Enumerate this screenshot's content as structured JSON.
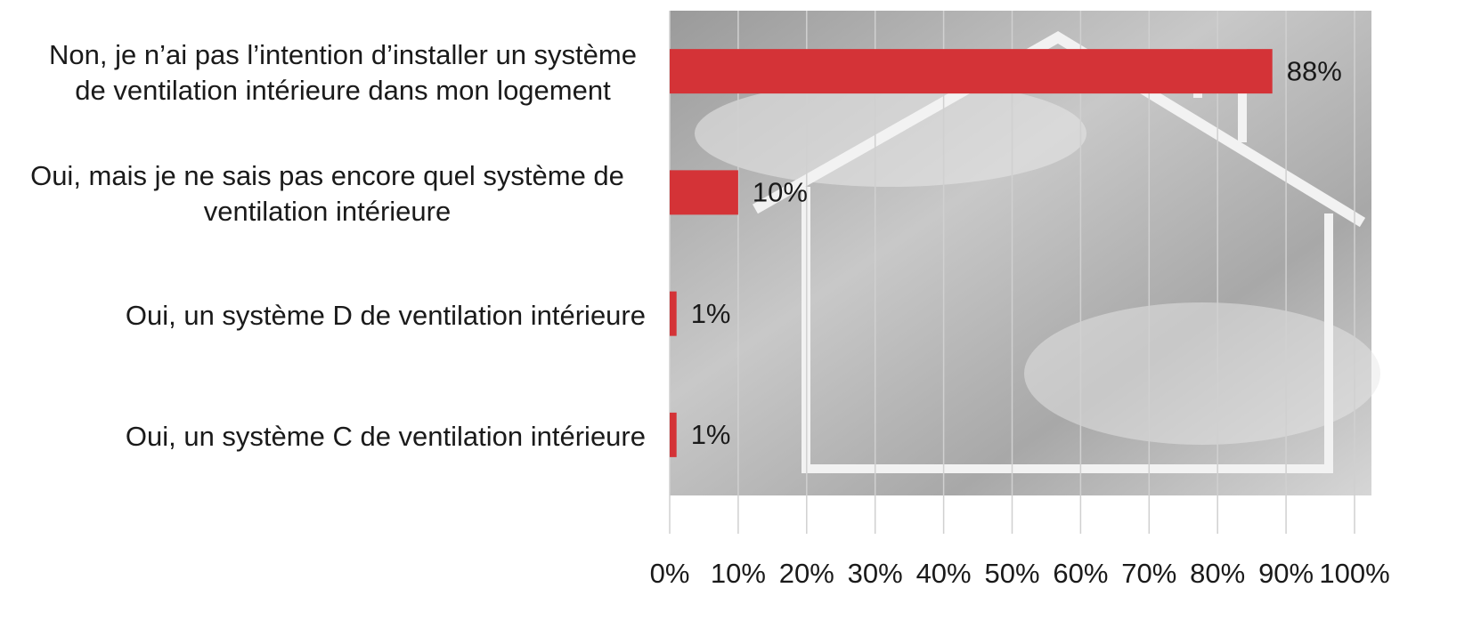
{
  "chart_data": {
    "type": "hbar",
    "categories": [
      "Non, je n’ai pas l’intention d’installer un système de ventilation intérieure dans mon logement",
      "Oui, mais je ne sais pas encore quel système de ventilation intérieure",
      "Oui, un système D de ventilation intérieure",
      "Oui, un système C de ventilation intérieure"
    ],
    "values": [
      88,
      10,
      1,
      1
    ],
    "value_labels": [
      "88%",
      "10%",
      "1%",
      "1%"
    ],
    "color": "#d43337",
    "xlim": [
      0,
      100
    ],
    "xticks": [
      {
        "value": 0,
        "label": "0%"
      },
      {
        "value": 10,
        "label": "10%"
      },
      {
        "value": 20,
        "label": "20%"
      },
      {
        "value": 30,
        "label": "30%"
      },
      {
        "value": 40,
        "label": "40%"
      },
      {
        "value": 50,
        "label": "50%"
      },
      {
        "value": 60,
        "label": "60%"
      },
      {
        "value": 70,
        "label": "70%"
      },
      {
        "value": 80,
        "label": "80%"
      },
      {
        "value": 90,
        "label": "90%"
      },
      {
        "value": 100,
        "label": "100%"
      }
    ],
    "grid": true
  }
}
